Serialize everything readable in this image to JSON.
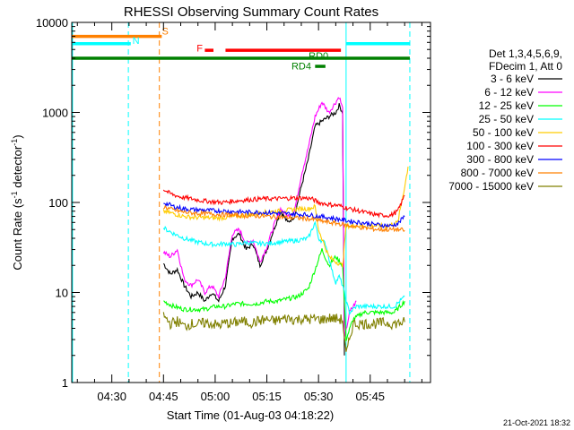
{
  "chart_data": {
    "type": "line",
    "title": "RHESSI Observing Summary Count Rates",
    "xlabel": "Start Time (01-Aug-03 04:18:22)",
    "ylabel_main": "Count Rate (s",
    "ylabel_sup1": "-1",
    "ylabel_mid": " detector",
    "ylabel_sup2": "-1",
    "ylabel_end": ")",
    "yscale": "log",
    "ylim": [
      1,
      10000
    ],
    "xlim_minutes": [
      258.37,
      362.5
    ],
    "x_ticks": [
      {
        "minute": 270,
        "label": "04:30"
      },
      {
        "minute": 285,
        "label": "04:45"
      },
      {
        "minute": 300,
        "label": "05:00"
      },
      {
        "minute": 315,
        "label": "05:15"
      },
      {
        "minute": 330,
        "label": "05:30"
      },
      {
        "minute": 345,
        "label": "05:45"
      }
    ],
    "x_minor_step": 5,
    "y_ticks": [
      {
        "value": 1,
        "label": "1"
      },
      {
        "value": 10,
        "label": "10"
      },
      {
        "value": 100,
        "label": "100"
      },
      {
        "value": 1000,
        "label": "1000"
      },
      {
        "value": 10000,
        "label": "10000"
      }
    ],
    "legend_header": [
      "Det 1,3,4,5,6,9,",
      "FDecim 1, Att 0"
    ],
    "legend_position": "right",
    "series": [
      {
        "name": "3 - 6 keV",
        "color": "#000000",
        "points": [
          [
            285,
            21
          ],
          [
            287,
            16
          ],
          [
            289,
            18
          ],
          [
            291,
            12
          ],
          [
            293,
            9
          ],
          [
            295,
            10
          ],
          [
            297,
            8
          ],
          [
            299,
            10
          ],
          [
            301,
            8
          ],
          [
            303,
            12
          ],
          [
            305,
            40
          ],
          [
            307,
            45
          ],
          [
            309,
            30
          ],
          [
            311,
            35
          ],
          [
            313,
            20
          ],
          [
            315,
            30
          ],
          [
            317,
            50
          ],
          [
            319,
            80
          ],
          [
            321,
            60
          ],
          [
            323,
            70
          ],
          [
            325,
            150
          ],
          [
            327,
            300
          ],
          [
            329,
            700
          ],
          [
            331,
            800
          ],
          [
            333,
            900
          ],
          [
            335,
            1000
          ],
          [
            336,
            1200
          ],
          [
            337,
            1000
          ],
          [
            337.5,
            2
          ]
        ]
      },
      {
        "name": "6 - 12 keV",
        "color": "#ff00ff",
        "points": [
          [
            285,
            28
          ],
          [
            287,
            25
          ],
          [
            289,
            30
          ],
          [
            291,
            14
          ],
          [
            293,
            12
          ],
          [
            295,
            14
          ],
          [
            297,
            10
          ],
          [
            299,
            12
          ],
          [
            301,
            9
          ],
          [
            303,
            15
          ],
          [
            305,
            45
          ],
          [
            307,
            50
          ],
          [
            309,
            35
          ],
          [
            311,
            38
          ],
          [
            313,
            22
          ],
          [
            315,
            32
          ],
          [
            317,
            55
          ],
          [
            319,
            85
          ],
          [
            321,
            70
          ],
          [
            323,
            80
          ],
          [
            325,
            200
          ],
          [
            327,
            400
          ],
          [
            329,
            900
          ],
          [
            331,
            1300
          ],
          [
            333,
            1000
          ],
          [
            335,
            1300
          ],
          [
            336,
            1500
          ],
          [
            337,
            1100
          ],
          [
            337.5,
            3
          ],
          [
            339,
            6
          ],
          [
            341,
            8
          ]
        ]
      },
      {
        "name": "12 - 25 keV",
        "color": "#00ff00",
        "points": [
          [
            285,
            8
          ],
          [
            288,
            7
          ],
          [
            291,
            6.5
          ],
          [
            294,
            6.5
          ],
          [
            297,
            6.5
          ],
          [
            300,
            7
          ],
          [
            303,
            7
          ],
          [
            306,
            7.5
          ],
          [
            309,
            7.5
          ],
          [
            312,
            7.5
          ],
          [
            315,
            8
          ],
          [
            318,
            8
          ],
          [
            321,
            8.5
          ],
          [
            324,
            9
          ],
          [
            327,
            11
          ],
          [
            329,
            18
          ],
          [
            331,
            30
          ],
          [
            333,
            20
          ],
          [
            335,
            25
          ],
          [
            337,
            20
          ],
          [
            338,
            3
          ],
          [
            340,
            5
          ],
          [
            343,
            6
          ],
          [
            346,
            6
          ],
          [
            349,
            6
          ],
          [
            352,
            6
          ],
          [
            355,
            8
          ]
        ]
      },
      {
        "name": "25 - 50 keV",
        "color": "#00ffff",
        "points": [
          [
            285,
            52
          ],
          [
            288,
            45
          ],
          [
            291,
            40
          ],
          [
            294,
            37
          ],
          [
            297,
            35
          ],
          [
            300,
            34
          ],
          [
            303,
            35
          ],
          [
            306,
            34
          ],
          [
            309,
            36
          ],
          [
            312,
            35
          ],
          [
            315,
            35
          ],
          [
            318,
            36
          ],
          [
            321,
            37
          ],
          [
            324,
            38
          ],
          [
            327,
            40
          ],
          [
            329,
            60
          ],
          [
            330,
            40
          ],
          [
            332,
            35
          ],
          [
            334,
            17
          ],
          [
            335,
            13
          ],
          [
            336,
            15
          ],
          [
            337,
            12
          ],
          [
            338,
            8
          ],
          [
            339,
            6
          ],
          [
            341,
            7
          ],
          [
            344,
            7
          ],
          [
            348,
            7
          ],
          [
            352,
            7
          ],
          [
            355,
            9
          ]
        ]
      },
      {
        "name": "50 - 100 keV",
        "color": "#ffcc00",
        "points": [
          [
            285,
            80
          ],
          [
            288,
            75
          ],
          [
            291,
            70
          ],
          [
            294,
            68
          ],
          [
            297,
            68
          ],
          [
            300,
            67
          ],
          [
            303,
            68
          ],
          [
            306,
            70
          ],
          [
            309,
            72
          ],
          [
            312,
            75
          ],
          [
            315,
            78
          ],
          [
            318,
            80
          ],
          [
            321,
            82
          ],
          [
            324,
            85
          ],
          [
            327,
            85
          ],
          [
            329,
            90
          ],
          [
            330,
            50
          ],
          [
            333,
            25
          ],
          [
            335,
            22
          ],
          [
            337,
            20
          ],
          [
            338,
            55
          ],
          [
            341,
            55
          ],
          [
            344,
            55
          ],
          [
            347,
            55
          ],
          [
            350,
            55
          ],
          [
            353,
            60
          ],
          [
            355,
            150
          ],
          [
            356,
            250
          ]
        ]
      },
      {
        "name": "100 - 300 keV",
        "color": "#ff0000",
        "points": [
          [
            285,
            140
          ],
          [
            287,
            125
          ],
          [
            290,
            115
          ],
          [
            293,
            110
          ],
          [
            296,
            105
          ],
          [
            299,
            102
          ],
          [
            302,
            100
          ],
          [
            305,
            103
          ],
          [
            308,
            106
          ],
          [
            311,
            108
          ],
          [
            314,
            110
          ],
          [
            317,
            110
          ],
          [
            320,
            111
          ],
          [
            323,
            112
          ],
          [
            326,
            112
          ],
          [
            328,
            110
          ],
          [
            330,
            100
          ],
          [
            333,
            95
          ],
          [
            336,
            92
          ],
          [
            339,
            85
          ],
          [
            342,
            80
          ],
          [
            345,
            75
          ],
          [
            348,
            72
          ],
          [
            351,
            72
          ],
          [
            353,
            80
          ],
          [
            355,
            120
          ]
        ]
      },
      {
        "name": "300 - 800 keV",
        "color": "#0000ff",
        "points": [
          [
            285,
            100
          ],
          [
            288,
            90
          ],
          [
            291,
            85
          ],
          [
            294,
            83
          ],
          [
            297,
            82
          ],
          [
            300,
            81
          ],
          [
            303,
            80
          ],
          [
            306,
            79
          ],
          [
            309,
            78
          ],
          [
            312,
            78
          ],
          [
            315,
            77
          ],
          [
            318,
            76
          ],
          [
            321,
            75
          ],
          [
            324,
            74
          ],
          [
            327,
            73
          ],
          [
            330,
            70
          ],
          [
            333,
            68
          ],
          [
            336,
            65
          ],
          [
            339,
            62
          ],
          [
            342,
            60
          ],
          [
            345,
            58
          ],
          [
            348,
            56
          ],
          [
            351,
            55
          ],
          [
            353,
            58
          ],
          [
            355,
            70
          ]
        ]
      },
      {
        "name": "800 - 7000 keV",
        "color": "#ff8000",
        "points": [
          [
            285,
            90
          ],
          [
            288,
            82
          ],
          [
            291,
            78
          ],
          [
            294,
            76
          ],
          [
            297,
            75
          ],
          [
            300,
            74
          ],
          [
            303,
            73
          ],
          [
            306,
            72
          ],
          [
            309,
            71
          ],
          [
            312,
            71
          ],
          [
            315,
            70
          ],
          [
            318,
            69
          ],
          [
            321,
            68
          ],
          [
            324,
            67
          ],
          [
            327,
            66
          ],
          [
            330,
            63
          ],
          [
            333,
            60
          ],
          [
            336,
            58
          ],
          [
            339,
            55
          ],
          [
            342,
            53
          ],
          [
            345,
            51
          ],
          [
            348,
            50
          ],
          [
            351,
            50
          ],
          [
            353,
            50
          ],
          [
            355,
            49
          ]
        ]
      },
      {
        "name": "7000 - 15000 keV",
        "color": "#808000",
        "points": [
          [
            285,
            5.5
          ],
          [
            287,
            4.5
          ],
          [
            289,
            4.8
          ],
          [
            291,
            4.2
          ],
          [
            293,
            4.5
          ],
          [
            295,
            4.4
          ],
          [
            297,
            4.6
          ],
          [
            299,
            4.5
          ],
          [
            301,
            4.3
          ],
          [
            303,
            4.6
          ],
          [
            305,
            4.5
          ],
          [
            307,
            4.8
          ],
          [
            309,
            4.7
          ],
          [
            311,
            4.6
          ],
          [
            313,
            4.9
          ],
          [
            315,
            5
          ],
          [
            317,
            4.8
          ],
          [
            319,
            5
          ],
          [
            321,
            5.2
          ],
          [
            323,
            5
          ],
          [
            325,
            5.1
          ],
          [
            327,
            5
          ],
          [
            329,
            5.1
          ],
          [
            331,
            5
          ],
          [
            333,
            5.2
          ],
          [
            335,
            5.1
          ],
          [
            337,
            5
          ],
          [
            338,
            2
          ],
          [
            340,
            4.5
          ],
          [
            343,
            4.5
          ],
          [
            346,
            4.5
          ],
          [
            349,
            4.6
          ],
          [
            352,
            4.5
          ],
          [
            355,
            4.7
          ]
        ]
      }
    ],
    "flag_bars": [
      {
        "label": "S",
        "color": "#ff8000",
        "start": 258.37,
        "end": 284.5,
        "value": 7000
      },
      {
        "label": "N",
        "color": "#00ffff",
        "start": 258.37,
        "end": 275.5,
        "value": 5800
      },
      {
        "label": "N",
        "color": "#00ffff",
        "start": 338.0,
        "end": 356.5,
        "value": 5800
      },
      {
        "label": "F",
        "color": "#ff0000",
        "start": 297.0,
        "end": 299.5,
        "value": 4900
      },
      {
        "label": "F",
        "color": "#ff0000",
        "start": 303.0,
        "end": 336.5,
        "value": 4900
      },
      {
        "label": "RD4",
        "color": "#008000",
        "start": 329.0,
        "end": 332.0,
        "value": 3250
      },
      {
        "label": "RD0",
        "color": "#008000",
        "start": 258.37,
        "end": 356.5,
        "value": 4000
      }
    ],
    "flag_labels": [
      {
        "text": "S",
        "color": "#ff8000",
        "minute": 285.5,
        "value": 8000
      },
      {
        "text": "N",
        "color": "#00ffff",
        "minute": 277,
        "value": 6300
      },
      {
        "text": "F",
        "color": "#ff0000",
        "minute": 295.5,
        "value": 5200
      },
      {
        "text": "RD0",
        "color": "#008000",
        "minute": 330,
        "value": 4300
      },
      {
        "text": "RD4",
        "color": "#008000",
        "minute": 325,
        "value": 3300
      }
    ],
    "vlines": [
      {
        "minute": 258.6,
        "color": "#00ffff",
        "style": "solid"
      },
      {
        "minute": 274.8,
        "color": "#00ffff",
        "style": "dashed"
      },
      {
        "minute": 283.8,
        "color": "#ff8000",
        "style": "dashed"
      },
      {
        "minute": 338.0,
        "color": "#00ffff",
        "style": "solid"
      },
      {
        "minute": 356.5,
        "color": "#00ffff",
        "style": "dashed"
      }
    ],
    "footer_date": "21-Oct-2021 18:32"
  }
}
